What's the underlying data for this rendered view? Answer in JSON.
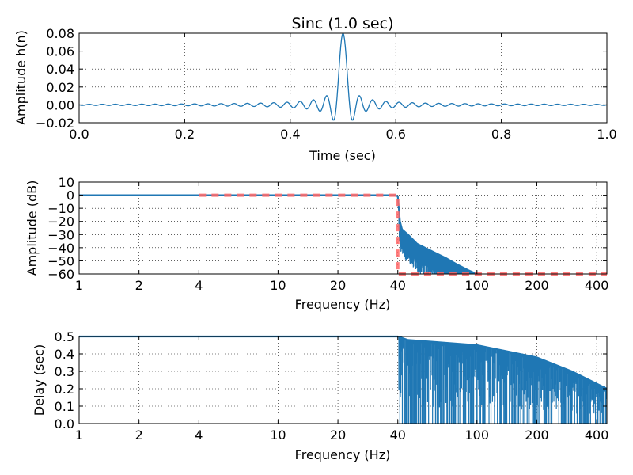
{
  "chart_data": [
    {
      "type": "line",
      "title": "Sinc (1.0 sec)",
      "xlabel": "Time (sec)",
      "ylabel": "Amplitude h(n)",
      "xlim": [
        0.0,
        1.0
      ],
      "ylim": [
        -0.02,
        0.08
      ],
      "x_ticks": [
        0.0,
        0.2,
        0.4,
        0.6,
        0.8,
        1.0
      ],
      "x_tick_labels": [
        "0.0",
        "0.2",
        "0.4",
        "0.6",
        "0.8",
        "1.0"
      ],
      "y_ticks": [
        -0.02,
        0.0,
        0.02,
        0.04,
        0.06,
        0.08
      ],
      "y_tick_labels": [
        "−0.02",
        "0.00",
        "0.02",
        "0.04",
        "0.06",
        "0.08"
      ],
      "grid": true,
      "series": [
        {
          "color": "#1f77b4",
          "kind": "sinc",
          "center": 0.5,
          "peak": 0.08,
          "cutoff_hz": 40
        }
      ]
    },
    {
      "type": "line",
      "xlabel": "Frequency (Hz)",
      "ylabel": "Amplitude (dB)",
      "xscale": "log",
      "xlim": [
        1,
        450
      ],
      "ylim": [
        -60,
        10
      ],
      "x_ticks": [
        1,
        2,
        4,
        10,
        20,
        40,
        100,
        200,
        400
      ],
      "x_tick_labels": [
        "1",
        "2",
        "4",
        "10",
        "20",
        "40",
        "100",
        "200",
        "400"
      ],
      "y_ticks": [
        -60,
        -50,
        -40,
        -30,
        -20,
        -10,
        0,
        10
      ],
      "y_tick_labels": [
        "−60",
        "−50",
        "−40",
        "−30",
        "−20",
        "−10",
        "0",
        "10"
      ],
      "grid": true,
      "series": [
        {
          "color": "#1f77b4",
          "points": [
            [
              1,
              0
            ],
            [
              39,
              0
            ],
            [
              40,
              -1
            ],
            [
              41,
              -20
            ],
            [
              42,
              -26
            ],
            [
              45,
              -30
            ],
            [
              50,
              -37
            ],
            [
              60,
              -43
            ],
            [
              70,
              -48
            ],
            [
              80,
              -53
            ],
            [
              90,
              -57
            ],
            [
              100,
              -60
            ]
          ]
        },
        {
          "color": "#ff6666",
          "style": "dashed",
          "points": [
            [
              4,
              0
            ],
            [
              40,
              0
            ],
            [
              40,
              -60
            ],
            [
              450,
              -60
            ]
          ]
        }
      ]
    },
    {
      "type": "line",
      "xlabel": "Frequency (Hz)",
      "ylabel": "Delay (sec)",
      "xscale": "log",
      "xlim": [
        1,
        450
      ],
      "ylim": [
        0.0,
        0.5
      ],
      "x_ticks": [
        1,
        2,
        4,
        10,
        20,
        40,
        100,
        200,
        400
      ],
      "x_tick_labels": [
        "1",
        "2",
        "4",
        "10",
        "20",
        "40",
        "100",
        "200",
        "400"
      ],
      "y_ticks": [
        0.0,
        0.1,
        0.2,
        0.3,
        0.4,
        0.5
      ],
      "y_tick_labels": [
        "0.0",
        "0.1",
        "0.2",
        "0.3",
        "0.4",
        "0.5"
      ],
      "grid": true,
      "series": [
        {
          "color": "#1f77b4",
          "points": [
            [
              1,
              0.5
            ],
            [
              40,
              0.5
            ],
            [
              45,
              0.48
            ],
            [
              100,
              0.45
            ],
            [
              200,
              0.38
            ],
            [
              300,
              0.3
            ],
            [
              450,
              0.2
            ]
          ]
        }
      ]
    }
  ]
}
